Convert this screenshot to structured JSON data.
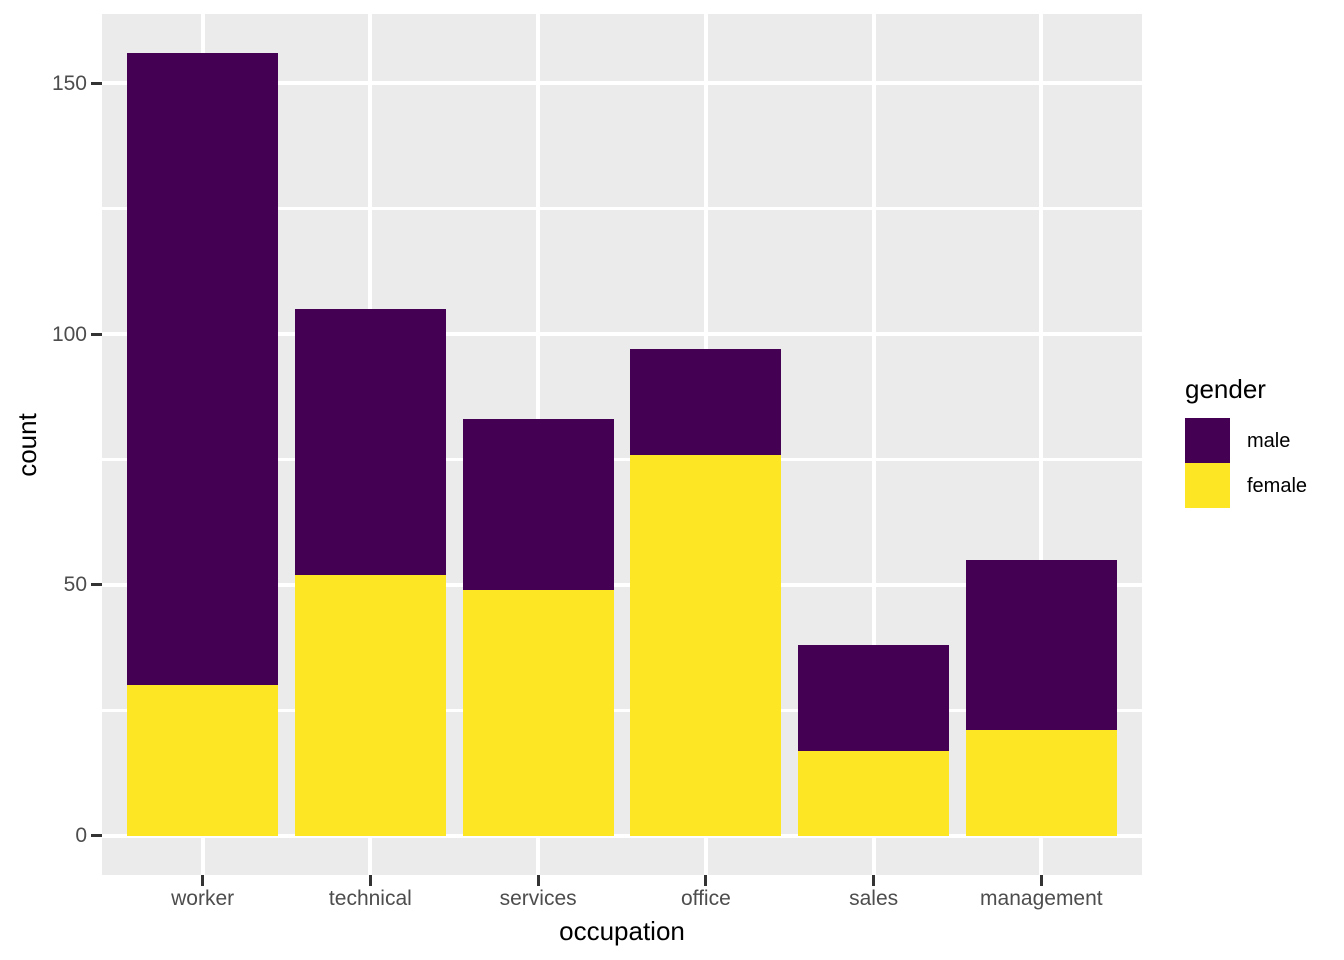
{
  "chart_data": {
    "type": "bar",
    "stacked": true,
    "title": "",
    "xlabel": "occupation",
    "ylabel": "count",
    "categories": [
      "worker",
      "technical",
      "services",
      "office",
      "sales",
      "management"
    ],
    "series": [
      {
        "name": "female",
        "color": "#FDE725",
        "values": [
          30,
          52,
          49,
          76,
          17,
          21
        ]
      },
      {
        "name": "male",
        "color": "#440154",
        "values": [
          126,
          53,
          34,
          21,
          21,
          34
        ]
      }
    ],
    "totals": [
      156,
      105,
      83,
      97,
      38,
      55
    ],
    "y_ticks": [
      0,
      50,
      100,
      150
    ],
    "y_minor_ticks": [
      25,
      75,
      125
    ],
    "ylim": [
      -7.8,
      163.8
    ],
    "grid": "major-and-minor-horizontal, major-vertical",
    "legend": {
      "title": "gender",
      "position": "right",
      "entries": [
        {
          "label": "male",
          "color": "#440154"
        },
        {
          "label": "female",
          "color": "#FDE725"
        }
      ]
    },
    "colors": {
      "panel_background": "#EBEBEB",
      "gridline": "#FFFFFF",
      "axis_text": "#4D4D4D",
      "tick_mark": "#333333",
      "axis_title": "#000000",
      "page_background": "#FFFFFF"
    }
  }
}
